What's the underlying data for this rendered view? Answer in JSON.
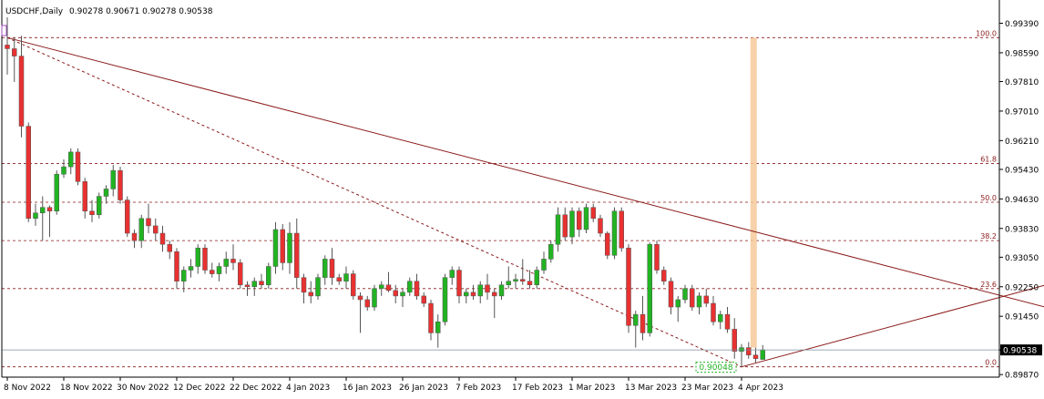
{
  "header": {
    "symbol_timeframe": "USDCHF,Daily",
    "ohlc": "0.90278 0.90671 0.90278 0.90538"
  },
  "colors": {
    "bull": "#22b322",
    "bear": "#e83131",
    "wick": "#555555",
    "fib_line": "#8b1a1a",
    "trend_line": "#8b1a1a",
    "bid_line": "#7a8fa0",
    "price_box": "#000000",
    "highlight_band": "#f5c99a",
    "low_label": "#22b322"
  },
  "chart_data": {
    "type": "candlestick",
    "symbol": "USDCHF",
    "timeframe": "Daily",
    "y_ticks": [
      "0.99390",
      "0.98590",
      "0.97810",
      "0.97010",
      "0.96210",
      "0.95430",
      "0.94630",
      "0.93830",
      "0.93050",
      "0.92250",
      "0.91450",
      "0.90538",
      "0.89870"
    ],
    "ylim": [
      0.8985,
      0.996
    ],
    "x_ticks": [
      "8 Nov 2022",
      "18 Nov 2022",
      "30 Nov 2022",
      "12 Dec 2022",
      "22 Dec 2022",
      "4 Jan 2023",
      "16 Jan 2023",
      "26 Jan 2023",
      "7 Feb 2023",
      "17 Feb 2023",
      "1 Mar 2023",
      "13 Mar 2023",
      "23 Mar 2023",
      "4 Apr 2023"
    ],
    "x_tick_bar_index": [
      0,
      8,
      16,
      24,
      32,
      40,
      48,
      56,
      64,
      72,
      80,
      88,
      96,
      104
    ],
    "current_price_label": "0.90538",
    "current_price": 0.90538,
    "fibonacci": {
      "levels": [
        {
          "label": "100.0",
          "price": 0.99
        },
        {
          "label": "61.8",
          "price": 0.9559
        },
        {
          "label": "50.0",
          "price": 0.9454
        },
        {
          "label": "38.2",
          "price": 0.935
        },
        {
          "label": "23.6",
          "price": 0.922
        },
        {
          "label": "0.0",
          "price": 0.9008
        }
      ],
      "low_label": "0.90048"
    },
    "candles": [
      [
        0.988,
        0.9955,
        0.98,
        0.987
      ],
      [
        0.987,
        0.99,
        0.978,
        0.985
      ],
      [
        0.985,
        0.9905,
        0.963,
        0.966
      ],
      [
        0.966,
        0.967,
        0.94,
        0.941
      ],
      [
        0.941,
        0.945,
        0.939,
        0.9425
      ],
      [
        0.9425,
        0.947,
        0.935,
        0.944
      ],
      [
        0.944,
        0.9445,
        0.936,
        0.943
      ],
      [
        0.943,
        0.954,
        0.942,
        0.953
      ],
      [
        0.953,
        0.957,
        0.952,
        0.955
      ],
      [
        0.955,
        0.96,
        0.953,
        0.959
      ],
      [
        0.959,
        0.96,
        0.95,
        0.951
      ],
      [
        0.951,
        0.952,
        0.941,
        0.943
      ],
      [
        0.943,
        0.946,
        0.94,
        0.942
      ],
      [
        0.942,
        0.948,
        0.941,
        0.947
      ],
      [
        0.947,
        0.95,
        0.945,
        0.949
      ],
      [
        0.949,
        0.9555,
        0.947,
        0.954
      ],
      [
        0.954,
        0.955,
        0.945,
        0.946
      ],
      [
        0.946,
        0.947,
        0.936,
        0.937
      ],
      [
        0.937,
        0.938,
        0.933,
        0.935
      ],
      [
        0.935,
        0.942,
        0.933,
        0.941
      ],
      [
        0.941,
        0.945,
        0.937,
        0.939
      ],
      [
        0.939,
        0.941,
        0.935,
        0.937
      ],
      [
        0.937,
        0.939,
        0.932,
        0.934
      ],
      [
        0.934,
        0.935,
        0.93,
        0.932
      ],
      [
        0.932,
        0.933,
        0.922,
        0.924
      ],
      [
        0.924,
        0.928,
        0.921,
        0.927
      ],
      [
        0.927,
        0.93,
        0.925,
        0.928
      ],
      [
        0.928,
        0.934,
        0.926,
        0.933
      ],
      [
        0.933,
        0.934,
        0.926,
        0.927
      ],
      [
        0.927,
        0.929,
        0.925,
        0.926
      ],
      [
        0.926,
        0.929,
        0.924,
        0.928
      ],
      [
        0.928,
        0.932,
        0.926,
        0.93
      ],
      [
        0.93,
        0.934,
        0.927,
        0.929
      ],
      [
        0.929,
        0.93,
        0.922,
        0.923
      ],
      [
        0.923,
        0.924,
        0.92,
        0.9225
      ],
      [
        0.9225,
        0.925,
        0.92,
        0.924
      ],
      [
        0.924,
        0.926,
        0.922,
        0.923
      ],
      [
        0.923,
        0.929,
        0.922,
        0.928
      ],
      [
        0.928,
        0.94,
        0.926,
        0.938
      ],
      [
        0.938,
        0.9395,
        0.927,
        0.929
      ],
      [
        0.929,
        0.94,
        0.926,
        0.937
      ],
      [
        0.937,
        0.941,
        0.922,
        0.925
      ],
      [
        0.925,
        0.926,
        0.918,
        0.921
      ],
      [
        0.921,
        0.924,
        0.918,
        0.92
      ],
      [
        0.92,
        0.926,
        0.919,
        0.925
      ],
      [
        0.925,
        0.931,
        0.923,
        0.93
      ],
      [
        0.93,
        0.933,
        0.923,
        0.925
      ],
      [
        0.925,
        0.926,
        0.923,
        0.924
      ],
      [
        0.924,
        0.928,
        0.922,
        0.926
      ],
      [
        0.926,
        0.927,
        0.919,
        0.92
      ],
      [
        0.92,
        0.921,
        0.91,
        0.919
      ],
      [
        0.919,
        0.92,
        0.916,
        0.917
      ],
      [
        0.917,
        0.923,
        0.916,
        0.922
      ],
      [
        0.922,
        0.924,
        0.92,
        0.923
      ],
      [
        0.923,
        0.9265,
        0.921,
        0.9215
      ],
      [
        0.9215,
        0.923,
        0.918,
        0.92
      ],
      [
        0.92,
        0.922,
        0.917,
        0.921
      ],
      [
        0.921,
        0.925,
        0.92,
        0.924
      ],
      [
        0.924,
        0.926,
        0.919,
        0.92
      ],
      [
        0.92,
        0.921,
        0.917,
        0.918
      ],
      [
        0.918,
        0.919,
        0.908,
        0.91
      ],
      [
        0.91,
        0.915,
        0.906,
        0.913
      ],
      [
        0.913,
        0.926,
        0.912,
        0.925
      ],
      [
        0.925,
        0.928,
        0.923,
        0.927
      ],
      [
        0.927,
        0.928,
        0.918,
        0.92
      ],
      [
        0.92,
        0.922,
        0.918,
        0.921
      ],
      [
        0.921,
        0.923,
        0.919,
        0.92
      ],
      [
        0.92,
        0.924,
        0.918,
        0.923
      ],
      [
        0.923,
        0.926,
        0.919,
        0.921
      ],
      [
        0.921,
        0.922,
        0.914,
        0.92
      ],
      [
        0.92,
        0.924,
        0.919,
        0.923
      ],
      [
        0.923,
        0.928,
        0.922,
        0.924
      ],
      [
        0.924,
        0.926,
        0.922,
        0.9245
      ],
      [
        0.9245,
        0.93,
        0.923,
        0.924
      ],
      [
        0.924,
        0.927,
        0.922,
        0.923
      ],
      [
        0.923,
        0.928,
        0.922,
        0.927
      ],
      [
        0.927,
        0.932,
        0.926,
        0.93
      ],
      [
        0.93,
        0.935,
        0.929,
        0.934
      ],
      [
        0.934,
        0.944,
        0.932,
        0.942
      ],
      [
        0.942,
        0.944,
        0.935,
        0.936
      ],
      [
        0.936,
        0.944,
        0.934,
        0.943
      ],
      [
        0.943,
        0.944,
        0.936,
        0.938
      ],
      [
        0.938,
        0.945,
        0.937,
        0.944
      ],
      [
        0.944,
        0.945,
        0.94,
        0.941
      ],
      [
        0.941,
        0.942,
        0.936,
        0.937
      ],
      [
        0.937,
        0.9375,
        0.93,
        0.931
      ],
      [
        0.931,
        0.944,
        0.93,
        0.943
      ],
      [
        0.943,
        0.944,
        0.932,
        0.933
      ],
      [
        0.933,
        0.934,
        0.91,
        0.912
      ],
      [
        0.912,
        0.916,
        0.906,
        0.915
      ],
      [
        0.915,
        0.92,
        0.908,
        0.91
      ],
      [
        0.91,
        0.9345,
        0.909,
        0.934
      ],
      [
        0.934,
        0.935,
        0.926,
        0.927
      ],
      [
        0.927,
        0.928,
        0.923,
        0.924
      ],
      [
        0.924,
        0.925,
        0.915,
        0.917
      ],
      [
        0.917,
        0.92,
        0.913,
        0.919
      ],
      [
        0.919,
        0.923,
        0.918,
        0.922
      ],
      [
        0.922,
        0.923,
        0.916,
        0.917
      ],
      [
        0.917,
        0.921,
        0.915,
        0.92
      ],
      [
        0.92,
        0.922,
        0.917,
        0.918
      ],
      [
        0.918,
        0.92,
        0.912,
        0.913
      ],
      [
        0.913,
        0.916,
        0.911,
        0.915
      ],
      [
        0.915,
        0.917,
        0.91,
        0.911
      ],
      [
        0.911,
        0.914,
        0.903,
        0.905
      ],
      [
        0.905,
        0.907,
        0.9008,
        0.906
      ],
      [
        0.906,
        0.9075,
        0.903,
        0.904
      ],
      [
        0.904,
        0.906,
        0.902,
        0.903
      ],
      [
        0.9028,
        0.9067,
        0.9028,
        0.9054
      ]
    ],
    "trendlines": [
      {
        "name": "resistance",
        "style": "solid",
        "from": {
          "bar": 0,
          "price": 0.99
        },
        "to": {
          "bar": 151,
          "price": 0.915
        }
      },
      {
        "name": "fib-anchor",
        "style": "dashed",
        "from": {
          "bar": 0,
          "price": 0.99
        },
        "to": {
          "bar": 104,
          "price": 0.9008
        }
      },
      {
        "name": "support",
        "style": "solid",
        "from": {
          "bar": 104,
          "price": 0.9008
        },
        "to": {
          "bar": 151,
          "price": 0.925
        }
      }
    ]
  }
}
